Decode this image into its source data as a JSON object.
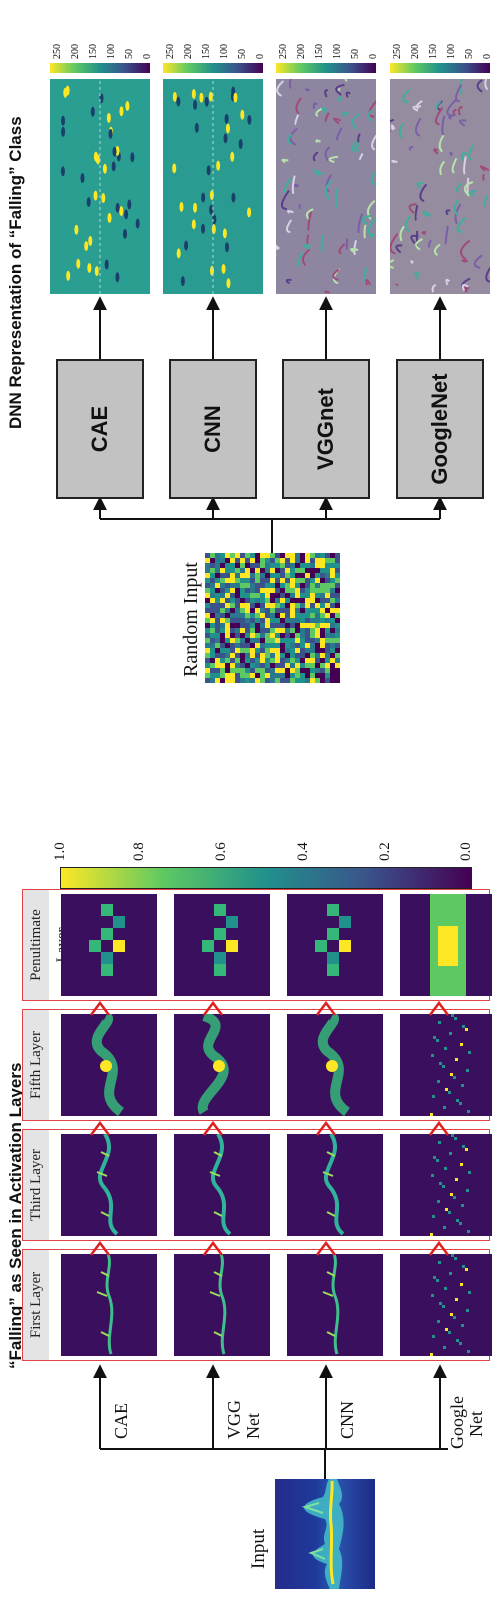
{
  "left_title": "“Falling” as Seen in Activation Layers",
  "right_title": "DNN Representation of “Falling” Class",
  "input_label": "Input",
  "random_input_label": "Random Input",
  "networks_left": [
    "CAE",
    "VGG Net",
    "CNN",
    "Google Net"
  ],
  "networks_left_lines": [
    [
      "CAE"
    ],
    [
      "VGG",
      "Net"
    ],
    [
      "CNN"
    ],
    [
      "Google",
      "Net"
    ]
  ],
  "layers": [
    "First Layer",
    "Third Layer",
    "Fifth Layer",
    "Penultimate Layer"
  ],
  "activation_colorbar": {
    "ticks": [
      "0.0",
      "0.2",
      "0.4",
      "0.6",
      "0.8",
      "1.0"
    ],
    "colors": [
      "#440154",
      "#3b528b",
      "#21918c",
      "#5ec962",
      "#fde725"
    ]
  },
  "networks_right": [
    "CAE",
    "CNN",
    "VGGnet",
    "GoogleNet"
  ],
  "pixel_colorbar": {
    "ticks": [
      "0",
      "50",
      "100",
      "150",
      "200",
      "250"
    ]
  },
  "colors": {
    "panel_border": "#e04444",
    "arrow_red": "#e02020",
    "box_fill": "#c2c2c2",
    "heatmap_bg": "#3a0f5e"
  }
}
